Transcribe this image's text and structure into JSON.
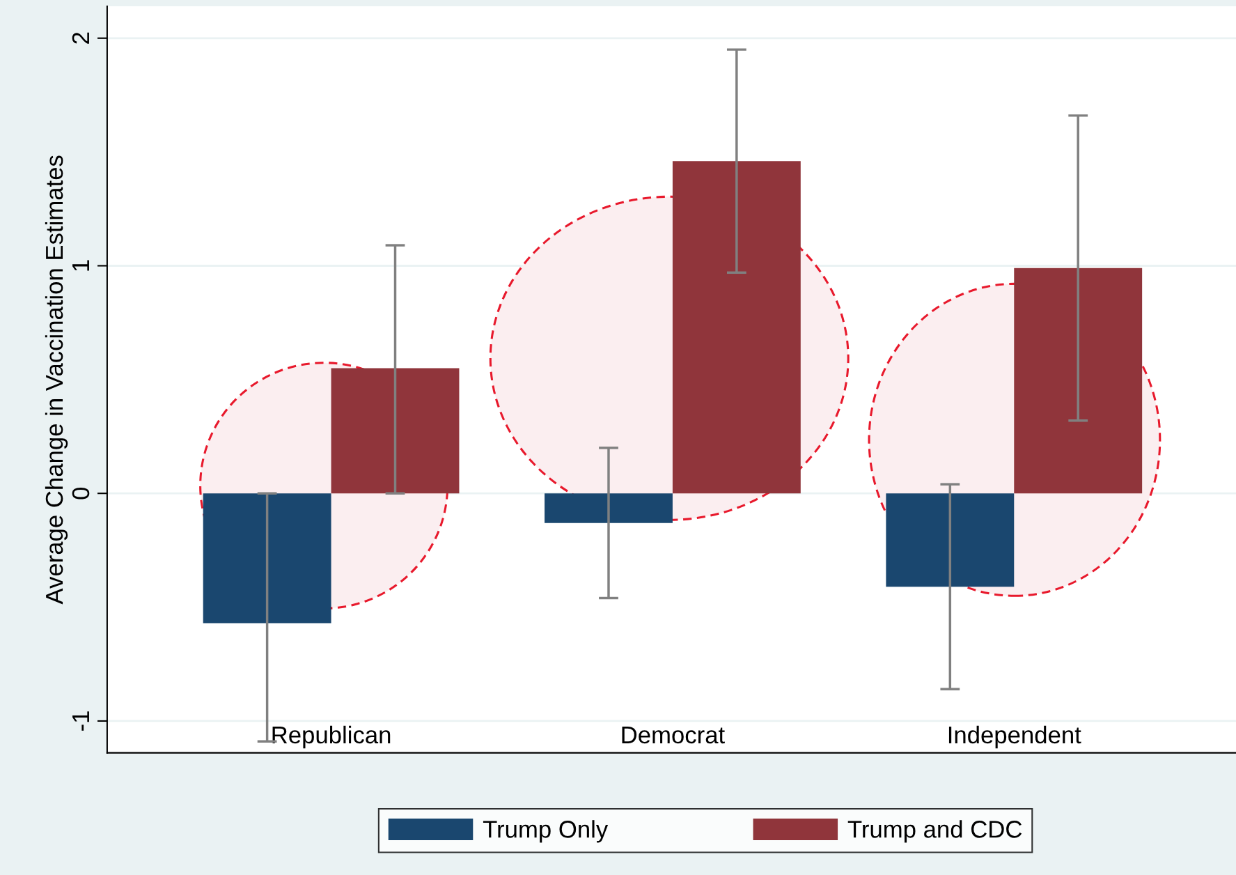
{
  "chart_data": {
    "type": "bar",
    "ylabel": "Average Change in Vaccination Estimates",
    "categories": [
      "Republican",
      "Democrat",
      "Independent"
    ],
    "series": [
      {
        "name": "Trump Only",
        "color": "#1a476f",
        "values": [
          -0.57,
          -0.13,
          -0.41
        ],
        "errors": [
          [
            -1.09,
            0.0
          ],
          [
            -0.46,
            0.2
          ],
          [
            -0.86,
            0.04
          ]
        ]
      },
      {
        "name": "Trump and CDC",
        "color": "#90353b",
        "values": [
          0.55,
          1.46,
          0.99
        ],
        "errors": [
          [
            0.0,
            1.09
          ],
          [
            0.97,
            1.95
          ],
          [
            0.32,
            1.66
          ]
        ]
      }
    ],
    "ylim": [
      -1.14,
      2.14
    ],
    "yticks": [
      -1,
      0,
      1,
      2
    ],
    "grid": "y",
    "legend": "bottom"
  }
}
